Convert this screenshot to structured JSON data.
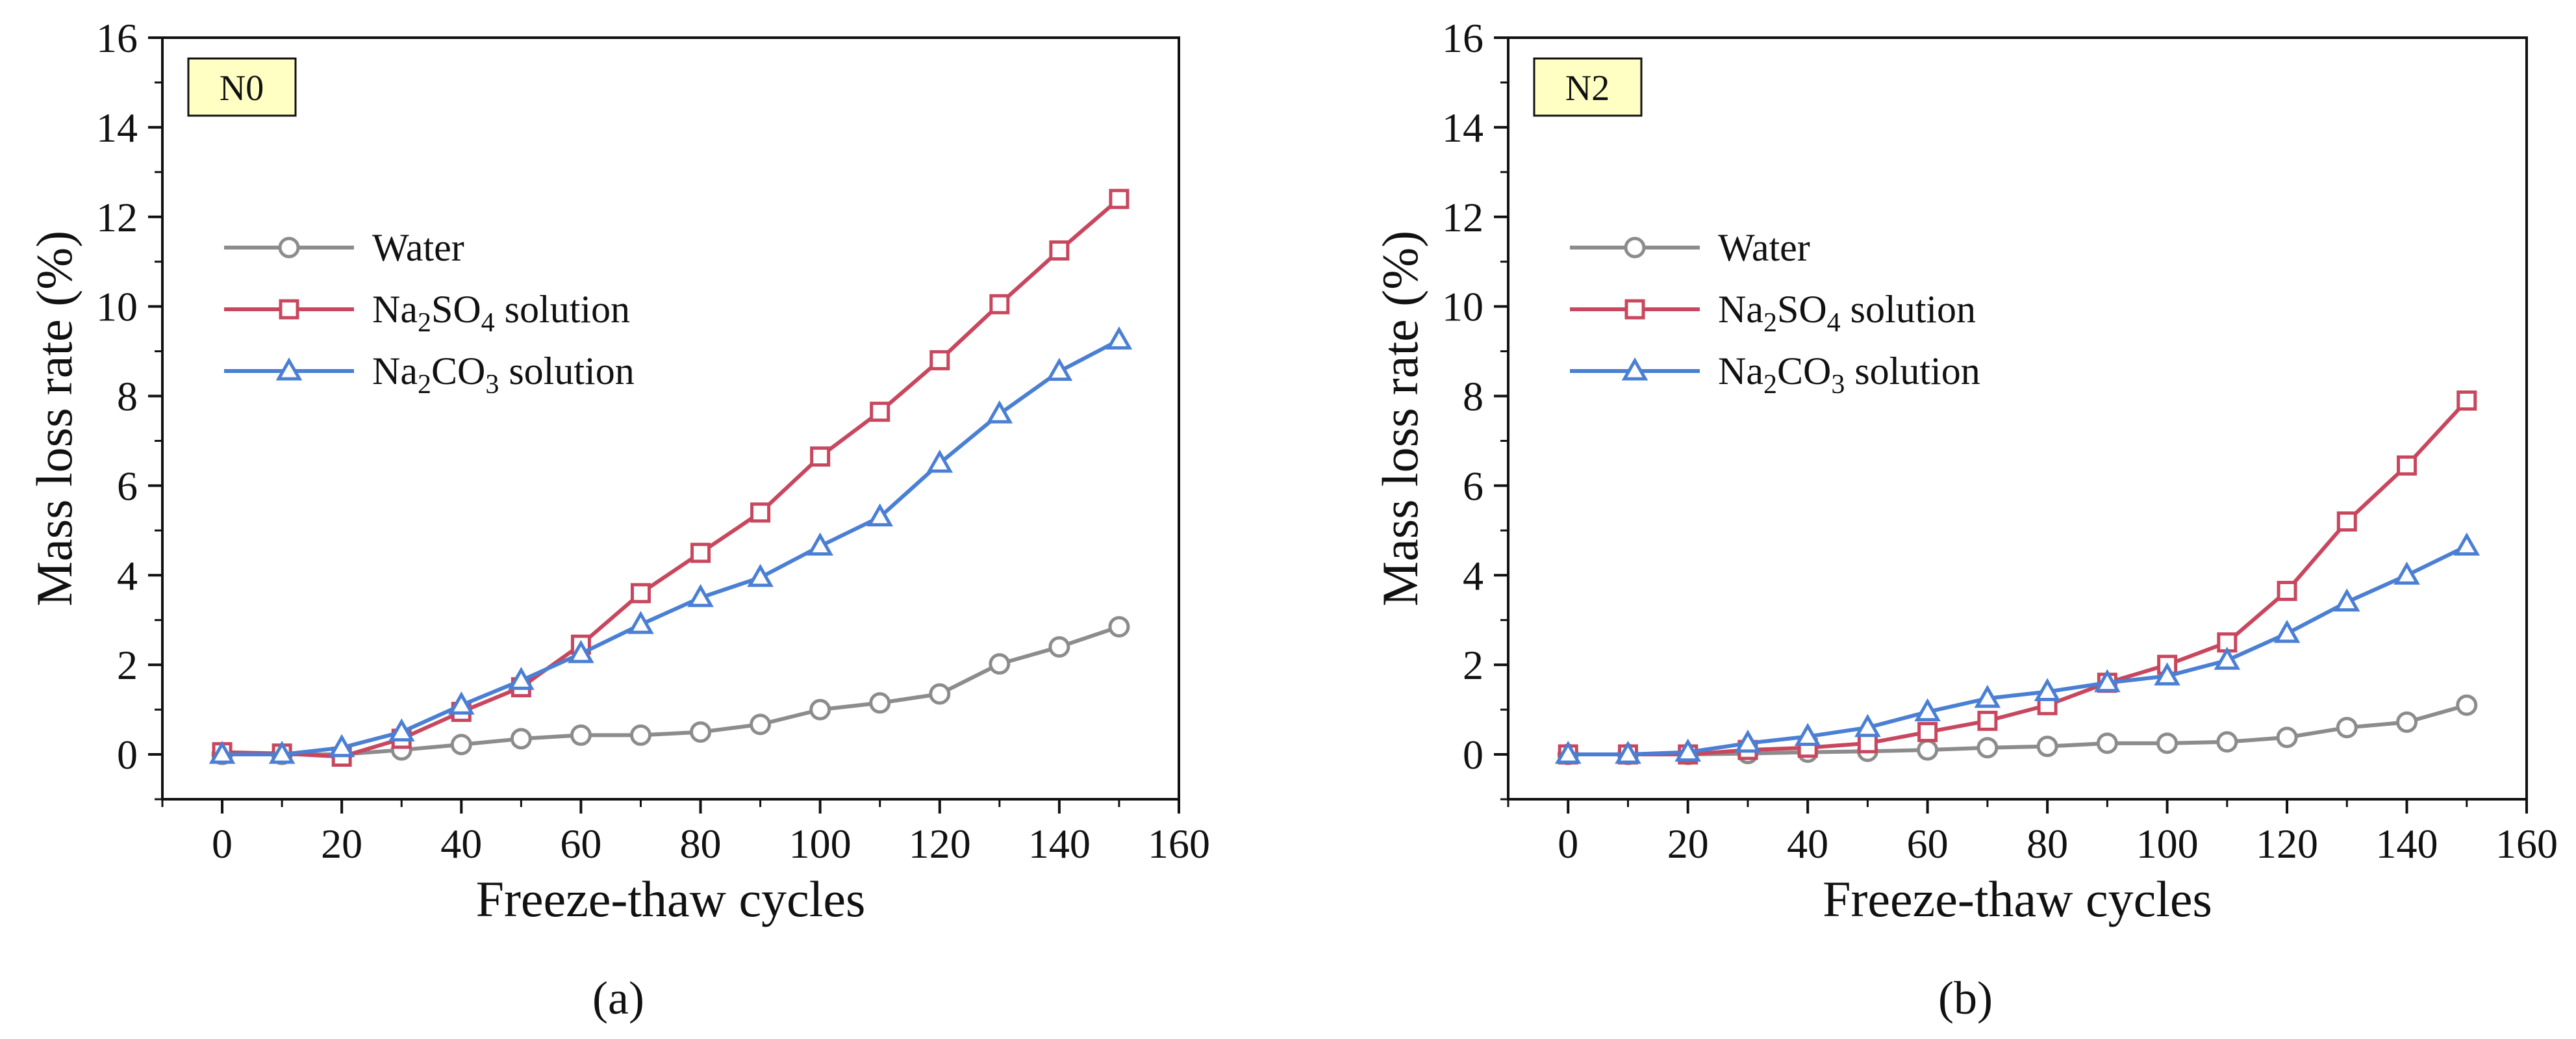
{
  "chart_data": [
    {
      "type": "line",
      "panel_label": "N0",
      "caption": "(a)",
      "xlabel": "Freeze-thaw cycles",
      "ylabel": "Mass loss rate (%)",
      "xlim": [
        -10,
        160
      ],
      "ylim": [
        -1,
        16
      ],
      "x_ticks": [
        0,
        20,
        40,
        60,
        80,
        100,
        120,
        140,
        160
      ],
      "y_ticks": [
        0,
        2,
        4,
        6,
        8,
        10,
        12,
        14,
        16
      ],
      "x": [
        0,
        10,
        20,
        30,
        40,
        50,
        60,
        70,
        80,
        90,
        100,
        110,
        120,
        130,
        140,
        150
      ],
      "series": [
        {
          "name": "Water",
          "parts": [
            {
              "t": "Water"
            }
          ],
          "marker": "circle",
          "color": "#8c8c8c",
          "values": [
            0,
            0,
            0,
            0.1,
            0.22,
            0.35,
            0.43,
            0.43,
            0.5,
            0.67,
            1.0,
            1.15,
            1.35,
            2.02,
            2.4,
            2.85
          ]
        },
        {
          "name": "Na2SO4 solution",
          "parts": [
            {
              "t": "Na"
            },
            {
              "t": "2",
              "sub": true
            },
            {
              "t": "SO"
            },
            {
              "t": "4",
              "sub": true
            },
            {
              "t": " solution"
            }
          ],
          "marker": "square",
          "color": "#c8475e",
          "values": [
            0.05,
            0.02,
            -0.05,
            0.35,
            0.95,
            1.5,
            2.45,
            3.6,
            4.5,
            5.4,
            6.65,
            7.65,
            8.8,
            10.05,
            11.25,
            12.4
          ]
        },
        {
          "name": "Na2CO3 solution",
          "parts": [
            {
              "t": "Na"
            },
            {
              "t": "2",
              "sub": true
            },
            {
              "t": "CO"
            },
            {
              "t": "3",
              "sub": true
            },
            {
              "t": " solution"
            }
          ],
          "marker": "triangle",
          "color": "#4a7fd4",
          "values": [
            0,
            0,
            0.15,
            0.5,
            1.1,
            1.65,
            2.25,
            2.9,
            3.5,
            3.95,
            4.65,
            5.3,
            6.5,
            7.6,
            8.55,
            9.25
          ]
        }
      ]
    },
    {
      "type": "line",
      "panel_label": "N2",
      "caption": "(b)",
      "xlabel": "Freeze-thaw cycles",
      "ylabel": "Mass loss rate (%)",
      "xlim": [
        -10,
        160
      ],
      "ylim": [
        -1,
        16
      ],
      "x_ticks": [
        0,
        20,
        40,
        60,
        80,
        100,
        120,
        140,
        160
      ],
      "y_ticks": [
        0,
        2,
        4,
        6,
        8,
        10,
        12,
        14,
        16
      ],
      "x": [
        0,
        10,
        20,
        30,
        40,
        50,
        60,
        70,
        80,
        90,
        100,
        110,
        120,
        130,
        140,
        150
      ],
      "series": [
        {
          "name": "Water",
          "parts": [
            {
              "t": "Water"
            }
          ],
          "marker": "circle",
          "color": "#8c8c8c",
          "values": [
            0,
            0,
            0,
            0.02,
            0.05,
            0.07,
            0.1,
            0.15,
            0.18,
            0.25,
            0.25,
            0.28,
            0.38,
            0.6,
            0.72,
            1.1
          ]
        },
        {
          "name": "Na2SO4 solution",
          "parts": [
            {
              "t": "Na"
            },
            {
              "t": "2",
              "sub": true
            },
            {
              "t": "SO"
            },
            {
              "t": "4",
              "sub": true
            },
            {
              "t": " solution"
            }
          ],
          "marker": "square",
          "color": "#c8475e",
          "values": [
            0,
            0,
            0,
            0.1,
            0.15,
            0.25,
            0.5,
            0.75,
            1.1,
            1.6,
            2.0,
            2.5,
            3.65,
            5.2,
            6.45,
            7.9
          ]
        },
        {
          "name": "Na2CO3 solution",
          "parts": [
            {
              "t": "Na"
            },
            {
              "t": "2",
              "sub": true
            },
            {
              "t": "CO"
            },
            {
              "t": "3",
              "sub": true
            },
            {
              "t": " solution"
            }
          ],
          "marker": "triangle",
          "color": "#4a7fd4",
          "values": [
            0,
            0,
            0.05,
            0.25,
            0.4,
            0.6,
            0.95,
            1.25,
            1.4,
            1.6,
            1.75,
            2.1,
            2.7,
            3.4,
            4.0,
            4.65
          ]
        }
      ]
    }
  ]
}
